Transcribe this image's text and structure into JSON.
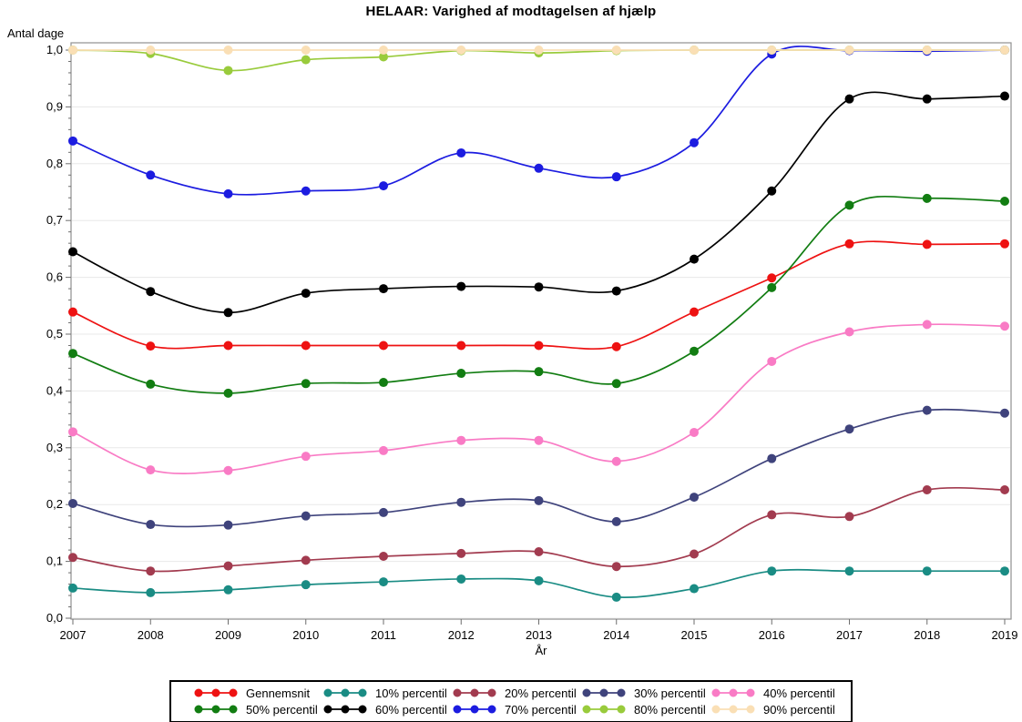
{
  "title": "HELAAR: Varighed af modtagelsen af hjælp",
  "chart_data": {
    "type": "line",
    "title": "HELAAR: Varighed af modtagelsen af hjælp",
    "xlabel": "År",
    "ylabel": "Antal dage",
    "x": [
      2007,
      2008,
      2009,
      2010,
      2011,
      2012,
      2013,
      2014,
      2015,
      2016,
      2017,
      2018,
      2019
    ],
    "ylim": [
      0.0,
      1.0
    ],
    "ytick_values": [
      0.0,
      0.1,
      0.2,
      0.3,
      0.4,
      0.5,
      0.6,
      0.7,
      0.8,
      0.9,
      1.0
    ],
    "ytick_labels": [
      "0,0",
      "0,1",
      "0,2",
      "0,3",
      "0,4",
      "0,5",
      "0,6",
      "0,7",
      "0,8",
      "0,9",
      "1,0"
    ],
    "grid": true,
    "legend_position": "bottom",
    "series": [
      {
        "name": "Gennemsnit",
        "color": "#EE1212",
        "values": [
          0.539,
          0.479,
          0.48,
          0.48,
          0.48,
          0.48,
          0.48,
          0.478,
          0.539,
          0.599,
          0.659,
          0.658,
          0.659
        ]
      },
      {
        "name": "10% percentil",
        "color": "#1A8C84",
        "values": [
          0.053,
          0.045,
          0.05,
          0.059,
          0.064,
          0.069,
          0.066,
          0.037,
          0.052,
          0.083,
          0.083,
          0.083,
          0.083
        ]
      },
      {
        "name": "20% percentil",
        "color": "#A23B4F",
        "values": [
          0.107,
          0.083,
          0.092,
          0.102,
          0.109,
          0.114,
          0.117,
          0.091,
          0.113,
          0.182,
          0.179,
          0.226,
          0.226
        ]
      },
      {
        "name": "30% percentil",
        "color": "#3F437C",
        "values": [
          0.202,
          0.165,
          0.164,
          0.18,
          0.186,
          0.204,
          0.207,
          0.17,
          0.213,
          0.281,
          0.333,
          0.366,
          0.361
        ]
      },
      {
        "name": "40% percentil",
        "color": "#F97BC5",
        "values": [
          0.328,
          0.261,
          0.26,
          0.285,
          0.295,
          0.313,
          0.313,
          0.276,
          0.327,
          0.452,
          0.504,
          0.517,
          0.514
        ]
      },
      {
        "name": "50% percentil",
        "color": "#127D12",
        "values": [
          0.466,
          0.412,
          0.396,
          0.413,
          0.415,
          0.431,
          0.434,
          0.413,
          0.47,
          0.582,
          0.727,
          0.739,
          0.734
        ]
      },
      {
        "name": "60% percentil",
        "color": "#000000",
        "values": [
          0.645,
          0.575,
          0.538,
          0.572,
          0.58,
          0.584,
          0.583,
          0.576,
          0.632,
          0.752,
          0.914,
          0.914,
          0.919
        ]
      },
      {
        "name": "70% percentil",
        "color": "#1C1CE0",
        "values": [
          0.84,
          0.78,
          0.747,
          0.752,
          0.761,
          0.819,
          0.792,
          0.777,
          0.837,
          0.993,
          0.999,
          0.998,
          1.0
        ]
      },
      {
        "name": "80% percentil",
        "color": "#99CB3C",
        "values": [
          1.0,
          0.994,
          0.964,
          0.983,
          0.988,
          0.999,
          0.995,
          0.999,
          1.0,
          1.0,
          1.0,
          1.0,
          1.0
        ]
      },
      {
        "name": "90% percentil",
        "color": "#FADFB5",
        "values": [
          1.0,
          1.0,
          1.0,
          1.0,
          1.0,
          1.0,
          1.0,
          1.0,
          1.0,
          1.0,
          1.0,
          1.0,
          1.0
        ]
      }
    ],
    "style": {
      "frame_color": "#909090",
      "grid_color": "#E8E8E8",
      "tick_color": "#6E6E6E",
      "tick_label_color": "#000000"
    }
  }
}
